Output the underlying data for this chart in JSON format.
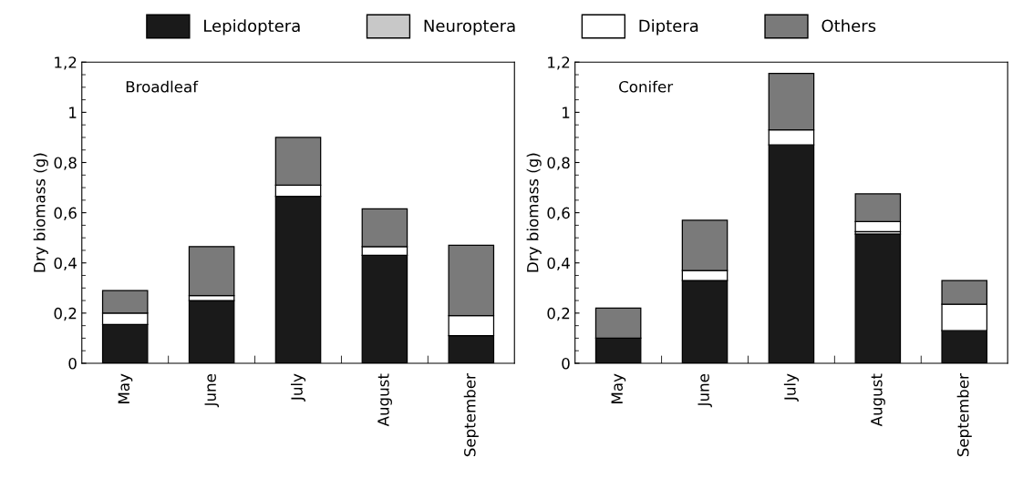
{
  "chart_data": [
    {
      "type": "bar",
      "stacked": true,
      "annotations": [
        "Broadleaf"
      ],
      "ylabel": "Dry biomass (g)",
      "categories": [
        "May",
        "June",
        "July",
        "August",
        "September"
      ],
      "ylim": [
        0,
        1.2
      ],
      "yticks": [
        0,
        {
          "value": 0.2,
          "label": "0,2"
        },
        {
          "value": 0.4,
          "label": "0,4"
        },
        {
          "value": 0.6,
          "label": "0,6"
        },
        {
          "value": 0.8,
          "label": "0,8"
        },
        1,
        {
          "value": 1.2,
          "label": "1,2"
        }
      ],
      "legend": "top",
      "series": [
        {
          "name": "Lepidoptera",
          "color": "#1a1a1a",
          "values": [
            0.155,
            0.25,
            0.665,
            0.43,
            0.11
          ]
        },
        {
          "name": "Neuroptera",
          "color": "#c8c8c8",
          "values": [
            null,
            null,
            null,
            null,
            null
          ]
        },
        {
          "name": "Diptera",
          "color": "#ffffff",
          "values": [
            0.045,
            0.02,
            0.045,
            0.035,
            0.08
          ]
        },
        {
          "name": "Others",
          "color": "#7a7a7a",
          "values": [
            0.09,
            0.195,
            0.19,
            0.15,
            0.28
          ]
        }
      ]
    },
    {
      "type": "bar",
      "stacked": true,
      "annotations": [
        "Conifer"
      ],
      "ylabel": "Dry biomass (g)",
      "categories": [
        "May",
        "June",
        "July",
        "August",
        "September"
      ],
      "ylim": [
        0,
        1.2
      ],
      "yticks": [
        0,
        {
          "value": 0.2,
          "label": "0,2"
        },
        {
          "value": 0.4,
          "label": "0,4"
        },
        {
          "value": 0.6,
          "label": "0,6"
        },
        {
          "value": 0.8,
          "label": "0,8"
        },
        1,
        {
          "value": 1.2,
          "label": "1,2"
        }
      ],
      "series": [
        {
          "color": "#1a1a1a",
          "values": [
            0.1,
            0.33,
            0.87,
            0.515,
            0.13
          ]
        },
        {
          "color": "#c8c8c8",
          "values": [
            null,
            null,
            null,
            0.01,
            null
          ]
        },
        {
          "color": "#ffffff",
          "values": [
            null,
            0.04,
            0.06,
            0.04,
            0.105
          ]
        },
        {
          "color": "#7a7a7a",
          "values": [
            0.12,
            0.2,
            0.225,
            0.11,
            0.095
          ]
        }
      ]
    }
  ]
}
